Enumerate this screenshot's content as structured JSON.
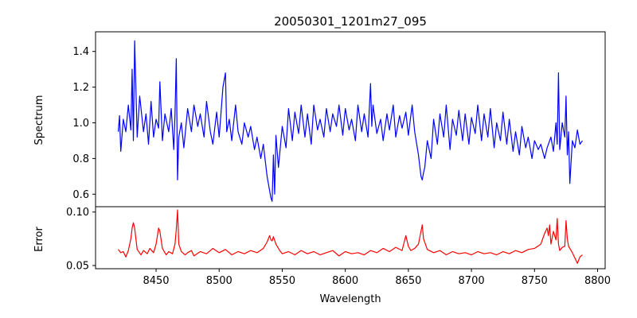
{
  "chart_data": {
    "type": "line",
    "title": "20050301_1201m27_095",
    "xlabel": "Wavelength",
    "xlim": [
      8402,
      8806
    ],
    "xticks": [
      "8450",
      "8500",
      "8550",
      "8600",
      "8650",
      "8700",
      "8750",
      "8800"
    ],
    "panels": [
      {
        "name": "spectrum",
        "ylabel": "Spectrum",
        "ylim": [
          0.53,
          1.51
        ],
        "yticks": [
          "0.6",
          "0.8",
          "1.0",
          "1.2",
          "1.4"
        ],
        "color": "#0000ff",
        "x": [
          8420,
          8421,
          8422,
          8424,
          8426,
          8428,
          8430,
          8431,
          8432,
          8433,
          8435,
          8437,
          8440,
          8442,
          8444,
          8446,
          8448,
          8450,
          8452,
          8453,
          8455,
          8457,
          8460,
          8462,
          8464,
          8465,
          8466,
          8467,
          8468,
          8470,
          8472,
          8475,
          8478,
          8480,
          8483,
          8485,
          8488,
          8490,
          8493,
          8495,
          8498,
          8500,
          8503,
          8505,
          8506,
          8508,
          8510,
          8513,
          8515,
          8518,
          8520,
          8523,
          8525,
          8528,
          8530,
          8533,
          8535,
          8538,
          8540,
          8541,
          8542,
          8543,
          8544,
          8545,
          8547,
          8550,
          8553,
          8555,
          8558,
          8560,
          8563,
          8565,
          8568,
          8570,
          8573,
          8575,
          8578,
          8580,
          8583,
          8585,
          8588,
          8590,
          8593,
          8595,
          8598,
          8600,
          8603,
          8605,
          8608,
          8610,
          8613,
          8615,
          8618,
          8620,
          8621,
          8622,
          8625,
          8628,
          8630,
          8633,
          8635,
          8638,
          8640,
          8643,
          8645,
          8648,
          8650,
          8653,
          8655,
          8658,
          8660,
          8661,
          8662,
          8663,
          8665,
          8668,
          8670,
          8673,
          8675,
          8678,
          8680,
          8683,
          8685,
          8688,
          8690,
          8693,
          8695,
          8698,
          8700,
          8703,
          8705,
          8708,
          8710,
          8713,
          8715,
          8718,
          8720,
          8723,
          8725,
          8728,
          8730,
          8733,
          8735,
          8738,
          8740,
          8743,
          8745,
          8748,
          8750,
          8753,
          8755,
          8758,
          8760,
          8763,
          8765,
          8767,
          8768,
          8769,
          8770,
          8772,
          8774,
          8775,
          8776,
          8777,
          8778,
          8780,
          8782,
          8784,
          8786,
          8788
        ],
        "values": [
          0.95,
          1.04,
          0.84,
          1.02,
          0.95,
          1.1,
          0.96,
          1.3,
          0.9,
          1.46,
          0.92,
          1.15,
          0.95,
          1.05,
          0.88,
          1.12,
          0.92,
          1.02,
          0.97,
          1.23,
          0.9,
          1.05,
          0.95,
          1.08,
          0.85,
          1.05,
          1.36,
          0.68,
          0.92,
          1.0,
          0.86,
          1.08,
          0.95,
          1.1,
          0.98,
          1.05,
          0.92,
          1.12,
          0.95,
          0.88,
          1.06,
          0.92,
          1.2,
          1.28,
          0.95,
          1.02,
          0.9,
          1.1,
          0.95,
          0.88,
          1.0,
          0.92,
          0.98,
          0.85,
          0.92,
          0.8,
          0.88,
          0.7,
          0.62,
          0.58,
          0.56,
          0.82,
          0.6,
          0.93,
          0.75,
          0.98,
          0.86,
          1.08,
          0.9,
          1.06,
          0.94,
          1.1,
          0.92,
          1.05,
          0.88,
          1.1,
          0.96,
          1.02,
          0.92,
          1.08,
          0.95,
          1.05,
          0.98,
          1.1,
          0.93,
          1.08,
          0.96,
          1.02,
          0.9,
          1.1,
          0.95,
          1.05,
          0.92,
          1.22,
          0.98,
          1.1,
          0.94,
          1.02,
          0.9,
          1.05,
          0.96,
          1.1,
          0.92,
          1.04,
          0.97,
          1.06,
          0.93,
          1.1,
          0.95,
          0.82,
          0.7,
          0.68,
          0.72,
          0.75,
          0.9,
          0.8,
          1.02,
          0.88,
          1.05,
          0.92,
          1.1,
          0.85,
          1.02,
          0.93,
          1.07,
          0.9,
          1.05,
          0.88,
          1.03,
          0.94,
          1.1,
          0.9,
          1.05,
          0.92,
          1.08,
          0.86,
          1.0,
          0.9,
          1.06,
          0.88,
          1.02,
          0.84,
          0.95,
          0.82,
          0.98,
          0.86,
          0.92,
          0.8,
          0.9,
          0.85,
          0.88,
          0.8,
          0.86,
          0.92,
          0.84,
          1.0,
          0.88,
          1.28,
          0.85,
          1.0,
          0.92,
          1.15,
          0.82,
          0.95,
          0.66,
          0.9,
          0.86,
          0.96,
          0.88,
          0.9
        ],
        "notes": ""
      },
      {
        "name": "error",
        "ylabel": "Error",
        "ylim": [
          0.047,
          0.105
        ],
        "yticks": [
          "0.05",
          "0.10"
        ],
        "color": "#ff0000",
        "x": [
          8420,
          8422,
          8424,
          8426,
          8428,
          8430,
          8431,
          8432,
          8433,
          8435,
          8438,
          8440,
          8443,
          8445,
          8448,
          8450,
          8452,
          8453,
          8455,
          8458,
          8460,
          8463,
          8465,
          8466,
          8467,
          8468,
          8470,
          8473,
          8475,
          8478,
          8480,
          8485,
          8490,
          8495,
          8500,
          8505,
          8510,
          8515,
          8520,
          8525,
          8530,
          8535,
          8538,
          8540,
          8541,
          8542,
          8543,
          8545,
          8548,
          8550,
          8555,
          8560,
          8565,
          8570,
          8575,
          8580,
          8585,
          8590,
          8595,
          8600,
          8605,
          8610,
          8615,
          8620,
          8625,
          8630,
          8635,
          8640,
          8645,
          8648,
          8650,
          8652,
          8655,
          8658,
          8660,
          8661,
          8662,
          8665,
          8670,
          8675,
          8680,
          8685,
          8690,
          8695,
          8700,
          8705,
          8710,
          8715,
          8720,
          8725,
          8730,
          8735,
          8740,
          8745,
          8750,
          8755,
          8758,
          8760,
          8761,
          8762,
          8763,
          8765,
          8767,
          8768,
          8769,
          8770,
          8772,
          8774,
          8775,
          8776,
          8777,
          8778,
          8780,
          8782,
          8784,
          8786,
          8788
        ],
        "values": [
          0.065,
          0.062,
          0.063,
          0.058,
          0.064,
          0.075,
          0.085,
          0.09,
          0.085,
          0.065,
          0.06,
          0.064,
          0.061,
          0.066,
          0.062,
          0.07,
          0.085,
          0.082,
          0.066,
          0.06,
          0.063,
          0.061,
          0.07,
          0.084,
          0.102,
          0.07,
          0.063,
          0.06,
          0.062,
          0.064,
          0.059,
          0.063,
          0.061,
          0.066,
          0.062,
          0.065,
          0.06,
          0.063,
          0.061,
          0.064,
          0.062,
          0.066,
          0.072,
          0.078,
          0.074,
          0.073,
          0.077,
          0.07,
          0.064,
          0.061,
          0.063,
          0.06,
          0.064,
          0.061,
          0.063,
          0.06,
          0.062,
          0.064,
          0.059,
          0.063,
          0.061,
          0.062,
          0.06,
          0.064,
          0.062,
          0.066,
          0.063,
          0.067,
          0.064,
          0.078,
          0.068,
          0.064,
          0.066,
          0.07,
          0.082,
          0.088,
          0.075,
          0.065,
          0.062,
          0.064,
          0.06,
          0.063,
          0.061,
          0.062,
          0.06,
          0.063,
          0.061,
          0.062,
          0.06,
          0.063,
          0.061,
          0.064,
          0.062,
          0.065,
          0.066,
          0.07,
          0.08,
          0.085,
          0.078,
          0.088,
          0.07,
          0.082,
          0.074,
          0.094,
          0.07,
          0.064,
          0.067,
          0.068,
          0.092,
          0.075,
          0.068,
          0.066,
          0.062,
          0.057,
          0.052,
          0.058,
          0.06
        ],
        "notes": ""
      }
    ]
  }
}
